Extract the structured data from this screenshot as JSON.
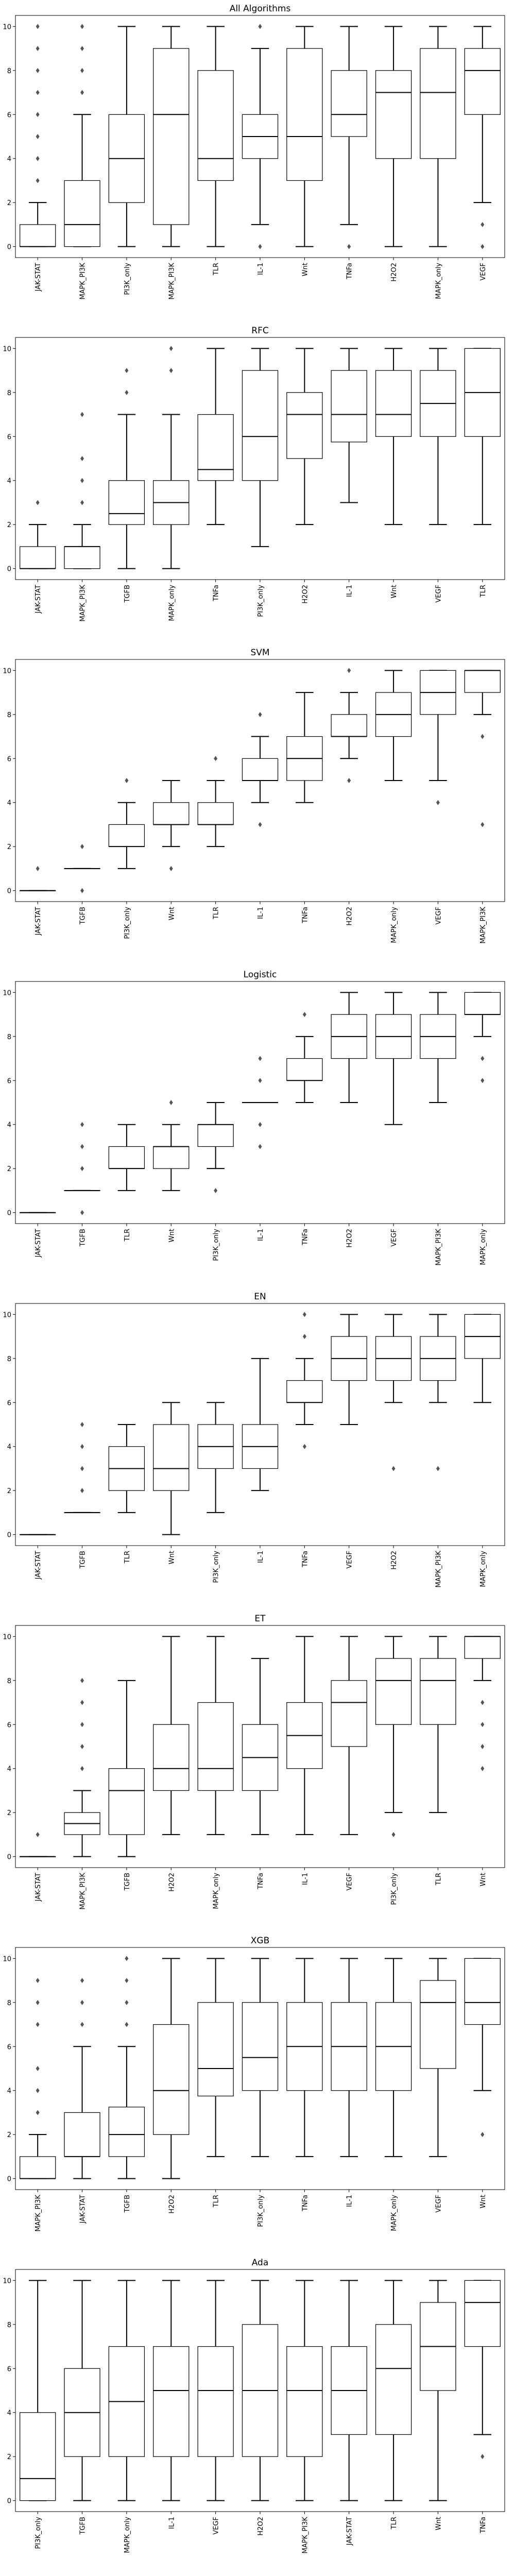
{
  "chart_data": [
    {
      "type": "box",
      "title": "All Algorithms",
      "ylim": [
        -0.5,
        10.5
      ],
      "yticks": [
        0,
        2,
        4,
        6,
        8,
        10
      ],
      "categories": [
        "JAK-STAT",
        "MAPK_PI3K",
        "PI3K_only",
        "MAPK_PI3K",
        "TLR",
        "IL-1",
        "Wnt",
        "TNFa",
        "H2O2",
        "MAPK_only",
        "VEGF"
      ],
      "boxes": [
        {
          "whislo": 0,
          "q1": 0,
          "med": 0,
          "q3": 1,
          "whishi": 2,
          "fliers": [
            3,
            4,
            5,
            6,
            7,
            8,
            9,
            10
          ]
        },
        {
          "whislo": 0,
          "q1": 0,
          "med": 1,
          "q3": 3,
          "whishi": 6,
          "fliers": [
            7,
            8,
            9,
            10
          ]
        },
        {
          "whislo": 0,
          "q1": 2,
          "med": 4,
          "q3": 6,
          "whishi": 10,
          "fliers": []
        },
        {
          "whislo": 0,
          "q1": 1,
          "med": 6,
          "q3": 9,
          "whishi": 10,
          "fliers": []
        },
        {
          "whislo": 0,
          "q1": 3,
          "med": 4,
          "q3": 8,
          "whishi": 10,
          "fliers": []
        },
        {
          "whislo": 1,
          "q1": 4,
          "med": 5,
          "q3": 6,
          "whishi": 9,
          "fliers": [
            0,
            10
          ]
        },
        {
          "whislo": 0,
          "q1": 3,
          "med": 5,
          "q3": 9,
          "whishi": 10,
          "fliers": []
        },
        {
          "whislo": 1,
          "q1": 5,
          "med": 6,
          "q3": 8,
          "whishi": 10,
          "fliers": [
            0
          ]
        },
        {
          "whislo": 0,
          "q1": 4,
          "med": 7,
          "q3": 8,
          "whishi": 10,
          "fliers": []
        },
        {
          "whislo": 0,
          "q1": 4,
          "med": 7,
          "q3": 9,
          "whishi": 10,
          "fliers": []
        },
        {
          "whislo": 2,
          "q1": 6,
          "med": 8,
          "q3": 9,
          "whishi": 10,
          "fliers": [
            0,
            1
          ]
        }
      ]
    },
    {
      "type": "box",
      "title": "RFC",
      "ylim": [
        -0.5,
        10.5
      ],
      "yticks": [
        0,
        2,
        4,
        6,
        8,
        10
      ],
      "categories": [
        "JAK-STAT",
        "MAPK_PI3K",
        "TGFB",
        "MAPK_only",
        "TNFa",
        "PI3K_only",
        "H2O2",
        "IL-1",
        "Wnt",
        "VEGF",
        "TLR"
      ],
      "boxes": [
        {
          "whislo": 0,
          "q1": 0,
          "med": 0,
          "q3": 1,
          "whishi": 2,
          "fliers": [
            3
          ]
        },
        {
          "whislo": 0,
          "q1": 0,
          "med": 1,
          "q3": 1,
          "whishi": 2,
          "fliers": [
            3,
            4,
            5,
            7
          ]
        },
        {
          "whislo": 0,
          "q1": 2,
          "med": 2.5,
          "q3": 4,
          "whishi": 7,
          "fliers": [
            8,
            9
          ]
        },
        {
          "whislo": 0,
          "q1": 2,
          "med": 3,
          "q3": 4,
          "whishi": 7,
          "fliers": [
            9,
            10
          ]
        },
        {
          "whislo": 2,
          "q1": 4,
          "med": 4.5,
          "q3": 7,
          "whishi": 10,
          "fliers": []
        },
        {
          "whislo": 1,
          "q1": 4,
          "med": 6,
          "q3": 9,
          "whishi": 10,
          "fliers": []
        },
        {
          "whislo": 2,
          "q1": 5,
          "med": 7,
          "q3": 8,
          "whishi": 10,
          "fliers": []
        },
        {
          "whislo": 3,
          "q1": 5.75,
          "med": 7,
          "q3": 9,
          "whishi": 10,
          "fliers": []
        },
        {
          "whislo": 2,
          "q1": 6,
          "med": 7,
          "q3": 9,
          "whishi": 10,
          "fliers": []
        },
        {
          "whislo": 2,
          "q1": 6,
          "med": 7.5,
          "q3": 9,
          "whishi": 10,
          "fliers": []
        },
        {
          "whislo": 2,
          "q1": 6,
          "med": 8,
          "q3": 10,
          "whishi": 10,
          "fliers": []
        }
      ]
    },
    {
      "type": "box",
      "title": "SVM",
      "ylim": [
        -0.5,
        10.5
      ],
      "yticks": [
        0,
        2,
        4,
        6,
        8,
        10
      ],
      "categories": [
        "JAK-STAT",
        "TGFB",
        "PI3K_only",
        "Wnt",
        "TLR",
        "IL-1",
        "TNFa",
        "H2O2",
        "MAPK_only",
        "VEGF",
        "MAPK_PI3K"
      ],
      "boxes": [
        {
          "whislo": 0,
          "q1": 0,
          "med": 0,
          "q3": 0,
          "whishi": 0,
          "fliers": [
            1
          ]
        },
        {
          "whislo": 1,
          "q1": 1,
          "med": 1,
          "q3": 1,
          "whishi": 1,
          "fliers": [
            0,
            2
          ]
        },
        {
          "whislo": 1,
          "q1": 2,
          "med": 2,
          "q3": 3,
          "whishi": 4,
          "fliers": [
            5
          ]
        },
        {
          "whislo": 2,
          "q1": 3,
          "med": 3,
          "q3": 4,
          "whishi": 5,
          "fliers": [
            1
          ]
        },
        {
          "whislo": 2,
          "q1": 3,
          "med": 3,
          "q3": 4,
          "whishi": 5,
          "fliers": [
            6
          ]
        },
        {
          "whislo": 4,
          "q1": 5,
          "med": 5,
          "q3": 6,
          "whishi": 7,
          "fliers": [
            3,
            8
          ]
        },
        {
          "whislo": 4,
          "q1": 5,
          "med": 6,
          "q3": 7,
          "whishi": 9,
          "fliers": []
        },
        {
          "whislo": 6,
          "q1": 7,
          "med": 7,
          "q3": 8,
          "whishi": 9,
          "fliers": [
            5,
            10
          ]
        },
        {
          "whislo": 5,
          "q1": 7,
          "med": 8,
          "q3": 9,
          "whishi": 10,
          "fliers": []
        },
        {
          "whislo": 5,
          "q1": 8,
          "med": 9,
          "q3": 10,
          "whishi": 10,
          "fliers": [
            4
          ]
        },
        {
          "whislo": 8,
          "q1": 9,
          "med": 10,
          "q3": 10,
          "whishi": 10,
          "fliers": [
            3,
            7
          ]
        }
      ]
    },
    {
      "type": "box",
      "title": "Logistic",
      "ylim": [
        -0.5,
        10.5
      ],
      "yticks": [
        0,
        2,
        4,
        6,
        8,
        10
      ],
      "categories": [
        "JAK-STAT",
        "TGFB",
        "TLR",
        "Wnt",
        "PI3K_only",
        "IL-1",
        "TNFa",
        "H2O2",
        "VEGF",
        "MAPK_PI3K",
        "MAPK_only"
      ],
      "boxes": [
        {
          "whislo": 0,
          "q1": 0,
          "med": 0,
          "q3": 0,
          "whishi": 0,
          "fliers": []
        },
        {
          "whislo": 1,
          "q1": 1,
          "med": 1,
          "q3": 1,
          "whishi": 1,
          "fliers": [
            0,
            2,
            3,
            4
          ]
        },
        {
          "whislo": 1,
          "q1": 2,
          "med": 2,
          "q3": 3,
          "whishi": 4,
          "fliers": []
        },
        {
          "whislo": 1,
          "q1": 2,
          "med": 3,
          "q3": 3,
          "whishi": 4,
          "fliers": [
            5
          ]
        },
        {
          "whislo": 2,
          "q1": 3,
          "med": 4,
          "q3": 4,
          "whishi": 5,
          "fliers": [
            1
          ]
        },
        {
          "whislo": 5,
          "q1": 5,
          "med": 5,
          "q3": 5,
          "whishi": 5,
          "fliers": [
            3,
            4,
            6,
            7
          ]
        },
        {
          "whislo": 5,
          "q1": 6,
          "med": 6,
          "q3": 7,
          "whishi": 8,
          "fliers": [
            9
          ]
        },
        {
          "whislo": 5,
          "q1": 7,
          "med": 8,
          "q3": 9,
          "whishi": 10,
          "fliers": []
        },
        {
          "whislo": 4,
          "q1": 7,
          "med": 8,
          "q3": 9,
          "whishi": 10,
          "fliers": []
        },
        {
          "whislo": 5,
          "q1": 7,
          "med": 8,
          "q3": 9,
          "whishi": 10,
          "fliers": []
        },
        {
          "whislo": 8,
          "q1": 9,
          "med": 9,
          "q3": 10,
          "whishi": 10,
          "fliers": [
            6,
            7
          ]
        }
      ]
    },
    {
      "type": "box",
      "title": "EN",
      "ylim": [
        -0.5,
        10.5
      ],
      "yticks": [
        0,
        2,
        4,
        6,
        8,
        10
      ],
      "categories": [
        "JAK-STAT",
        "TGFB",
        "TLR",
        "Wnt",
        "PI3K_only",
        "IL-1",
        "TNFa",
        "VEGF",
        "H2O2",
        "MAPK_PI3K",
        "MAPK_only"
      ],
      "boxes": [
        {
          "whislo": 0,
          "q1": 0,
          "med": 0,
          "q3": 0,
          "whishi": 0,
          "fliers": []
        },
        {
          "whislo": 1,
          "q1": 1,
          "med": 1,
          "q3": 1,
          "whishi": 1,
          "fliers": [
            2,
            3,
            4,
            5
          ]
        },
        {
          "whislo": 1,
          "q1": 2,
          "med": 3,
          "q3": 4,
          "whishi": 5,
          "fliers": []
        },
        {
          "whislo": 0,
          "q1": 2,
          "med": 3,
          "q3": 5,
          "whishi": 6,
          "fliers": []
        },
        {
          "whislo": 1,
          "q1": 3,
          "med": 4,
          "q3": 5,
          "whishi": 6,
          "fliers": []
        },
        {
          "whislo": 2,
          "q1": 3,
          "med": 4,
          "q3": 5,
          "whishi": 8,
          "fliers": []
        },
        {
          "whislo": 5,
          "q1": 6,
          "med": 6,
          "q3": 7,
          "whishi": 8,
          "fliers": [
            4,
            9,
            10
          ]
        },
        {
          "whislo": 5,
          "q1": 7,
          "med": 8,
          "q3": 9,
          "whishi": 10,
          "fliers": []
        },
        {
          "whislo": 6,
          "q1": 7,
          "med": 8,
          "q3": 9,
          "whishi": 10,
          "fliers": [
            3
          ]
        },
        {
          "whislo": 6,
          "q1": 7,
          "med": 8,
          "q3": 9,
          "whishi": 10,
          "fliers": [
            3
          ]
        },
        {
          "whislo": 6,
          "q1": 8,
          "med": 9,
          "q3": 10,
          "whishi": 10,
          "fliers": []
        }
      ]
    },
    {
      "type": "box",
      "title": "ET",
      "ylim": [
        -0.5,
        10.5
      ],
      "yticks": [
        0,
        2,
        4,
        6,
        8,
        10
      ],
      "categories": [
        "JAK-STAT",
        "MAPK_PI3K",
        "TGFB",
        "H2O2",
        "MAPK_only",
        "TNFa",
        "IL-1",
        "VEGF",
        "PI3K_only",
        "TLR",
        "Wnt"
      ],
      "boxes": [
        {
          "whislo": 0,
          "q1": 0,
          "med": 0,
          "q3": 0,
          "whishi": 0,
          "fliers": [
            1
          ]
        },
        {
          "whislo": 0,
          "q1": 1,
          "med": 1.5,
          "q3": 2,
          "whishi": 3,
          "fliers": [
            4,
            5,
            6,
            7,
            8
          ]
        },
        {
          "whislo": 0,
          "q1": 1,
          "med": 3,
          "q3": 4,
          "whishi": 8,
          "fliers": []
        },
        {
          "whislo": 1,
          "q1": 3,
          "med": 4,
          "q3": 6,
          "whishi": 10,
          "fliers": []
        },
        {
          "whislo": 1,
          "q1": 3,
          "med": 4,
          "q3": 7,
          "whishi": 10,
          "fliers": []
        },
        {
          "whislo": 1,
          "q1": 3,
          "med": 4.5,
          "q3": 6,
          "whishi": 9,
          "fliers": []
        },
        {
          "whislo": 1,
          "q1": 4,
          "med": 5.5,
          "q3": 7,
          "whishi": 10,
          "fliers": []
        },
        {
          "whislo": 1,
          "q1": 5,
          "med": 7,
          "q3": 8,
          "whishi": 10,
          "fliers": []
        },
        {
          "whislo": 2,
          "q1": 6,
          "med": 8,
          "q3": 9,
          "whishi": 10,
          "fliers": [
            1
          ]
        },
        {
          "whislo": 2,
          "q1": 6,
          "med": 8,
          "q3": 9,
          "whishi": 10,
          "fliers": []
        },
        {
          "whislo": 8,
          "q1": 9,
          "med": 10,
          "q3": 10,
          "whishi": 10,
          "fliers": [
            4,
            5,
            6,
            7
          ]
        }
      ]
    },
    {
      "type": "box",
      "title": "XGB",
      "ylim": [
        -0.5,
        10.5
      ],
      "yticks": [
        0,
        2,
        4,
        6,
        8,
        10
      ],
      "categories": [
        "MAPK_PI3K",
        "JAK-STAT",
        "TGFB",
        "H2O2",
        "TLR",
        "PI3K_only",
        "TNFa",
        "IL-1",
        "MAPK_only",
        "VEGF",
        "Wnt"
      ],
      "boxes": [
        {
          "whislo": 0,
          "q1": 0,
          "med": 0,
          "q3": 1,
          "whishi": 2,
          "fliers": [
            3,
            4,
            5,
            7,
            8,
            9
          ]
        },
        {
          "whislo": 0,
          "q1": 1,
          "med": 1,
          "q3": 3,
          "whishi": 6,
          "fliers": [
            7,
            8,
            9
          ]
        },
        {
          "whislo": 0,
          "q1": 1,
          "med": 2,
          "q3": 3.25,
          "whishi": 6,
          "fliers": [
            7,
            8,
            9,
            10
          ]
        },
        {
          "whislo": 0,
          "q1": 2,
          "med": 4,
          "q3": 7,
          "whishi": 10,
          "fliers": []
        },
        {
          "whislo": 1,
          "q1": 3.75,
          "med": 5,
          "q3": 8,
          "whishi": 10,
          "fliers": []
        },
        {
          "whislo": 1,
          "q1": 4,
          "med": 5.5,
          "q3": 8,
          "whishi": 10,
          "fliers": []
        },
        {
          "whislo": 1,
          "q1": 4,
          "med": 6,
          "q3": 8,
          "whishi": 10,
          "fliers": []
        },
        {
          "whislo": 1,
          "q1": 4,
          "med": 6,
          "q3": 8,
          "whishi": 10,
          "fliers": []
        },
        {
          "whislo": 1,
          "q1": 4,
          "med": 6,
          "q3": 8,
          "whishi": 10,
          "fliers": []
        },
        {
          "whislo": 1,
          "q1": 5,
          "med": 8,
          "q3": 9,
          "whishi": 10,
          "fliers": []
        },
        {
          "whislo": 4,
          "q1": 7,
          "med": 8,
          "q3": 10,
          "whishi": 10,
          "fliers": [
            2
          ]
        }
      ]
    },
    {
      "type": "box",
      "title": "Ada",
      "ylim": [
        -0.5,
        10.5
      ],
      "yticks": [
        0,
        2,
        4,
        6,
        8,
        10
      ],
      "categories": [
        "PI3K_only",
        "TGFB",
        "MAPK_only",
        "IL-1",
        "VEGF",
        "H2O2",
        "MAPK_PI3K",
        "JAK-STAT",
        "TLR",
        "Wnt",
        "TNFa"
      ],
      "boxes": [
        {
          "whislo": 0,
          "q1": 0,
          "med": 1,
          "q3": 4,
          "whishi": 10,
          "fliers": []
        },
        {
          "whislo": 0,
          "q1": 2,
          "med": 4,
          "q3": 6,
          "whishi": 10,
          "fliers": []
        },
        {
          "whislo": 0,
          "q1": 2,
          "med": 4.5,
          "q3": 7,
          "whishi": 10,
          "fliers": []
        },
        {
          "whislo": 0,
          "q1": 2,
          "med": 5,
          "q3": 7,
          "whishi": 10,
          "fliers": []
        },
        {
          "whislo": 0,
          "q1": 2,
          "med": 5,
          "q3": 7,
          "whishi": 10,
          "fliers": []
        },
        {
          "whislo": 0,
          "q1": 2,
          "med": 5,
          "q3": 8,
          "whishi": 10,
          "fliers": []
        },
        {
          "whislo": 0,
          "q1": 2,
          "med": 5,
          "q3": 7,
          "whishi": 10,
          "fliers": []
        },
        {
          "whislo": 0,
          "q1": 3,
          "med": 5,
          "q3": 7,
          "whishi": 10,
          "fliers": []
        },
        {
          "whislo": 0,
          "q1": 3,
          "med": 6,
          "q3": 8,
          "whishi": 10,
          "fliers": []
        },
        {
          "whislo": 0,
          "q1": 5,
          "med": 7,
          "q3": 9,
          "whishi": 10,
          "fliers": []
        },
        {
          "whislo": 3,
          "q1": 7,
          "med": 9,
          "q3": 10,
          "whishi": 10,
          "fliers": [
            2
          ]
        }
      ]
    }
  ]
}
